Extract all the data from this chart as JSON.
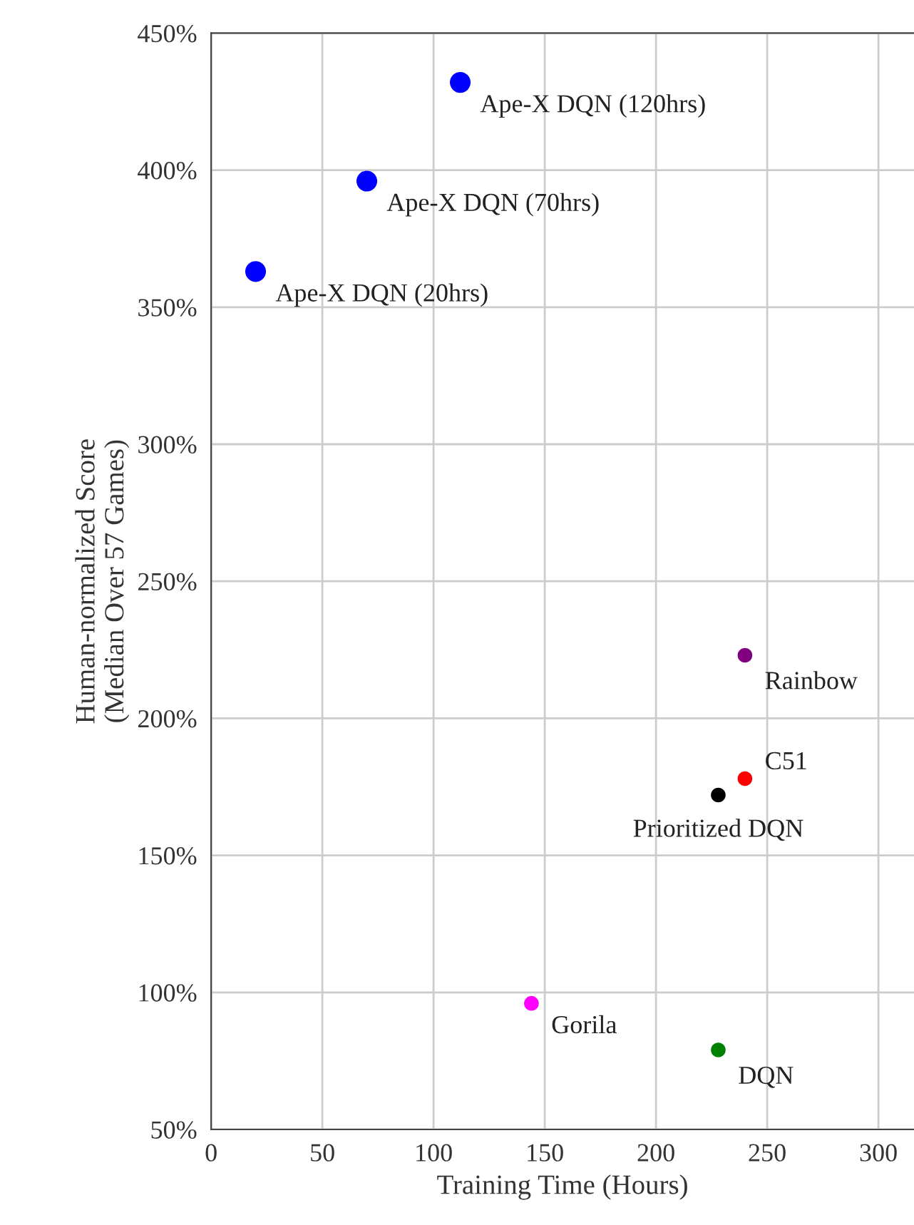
{
  "chart_data": {
    "type": "scatter",
    "xlabel": "Training Time (Hours)",
    "ylabel": "Human-normalized Score\n(Median Over 57 Games)",
    "series": [
      {
        "color": "#0000ff",
        "x": [
          112,
          70,
          20
        ],
        "values": [
          432,
          396,
          363
        ]
      },
      {
        "color": "#800080",
        "x": [
          240
        ],
        "values": [
          223
        ]
      },
      {
        "color": "#ff0000",
        "x": [
          240
        ],
        "values": [
          178
        ]
      },
      {
        "color": "#000000",
        "x": [
          228
        ],
        "values": [
          172
        ]
      },
      {
        "color": "#ff00ff",
        "x": [
          144
        ],
        "values": [
          96
        ]
      },
      {
        "color": "#008000",
        "x": [
          228
        ],
        "values": [
          79
        ]
      }
    ],
    "annotations": [
      {
        "text": "Ape-X DQN (120hrs)",
        "x": 112,
        "y": 432
      },
      {
        "text": "Ape-X DQN (70hrs)",
        "x": 70,
        "y": 396
      },
      {
        "text": "Ape-X DQN (20hrs)",
        "x": 20,
        "y": 363
      },
      {
        "text": "Rainbow",
        "x": 240,
        "y": 223
      },
      {
        "text": "C51",
        "x": 240,
        "y": 178
      },
      {
        "text": "Prioritized DQN",
        "x": 228,
        "y": 172
      },
      {
        "text": "Gorila",
        "x": 144,
        "y": 96
      },
      {
        "text": "DQN",
        "x": 228,
        "y": 79
      }
    ],
    "xlim": [
      0,
      316
    ],
    "xticks": [
      0,
      50,
      100,
      150,
      200,
      250,
      300
    ],
    "ylim": [
      50,
      450
    ],
    "yticks": [
      {
        "value": 50,
        "label": "50%"
      },
      {
        "value": 100,
        "label": "100%"
      },
      {
        "value": 150,
        "label": "150%"
      },
      {
        "value": 200,
        "label": "200%"
      },
      {
        "value": 250,
        "label": "250%"
      },
      {
        "value": 300,
        "label": "300%"
      },
      {
        "value": 350,
        "label": "350%"
      },
      {
        "value": 400,
        "label": "400%"
      },
      {
        "value": 450,
        "label": "450%"
      }
    ],
    "grid": true,
    "marker": "circle"
  }
}
